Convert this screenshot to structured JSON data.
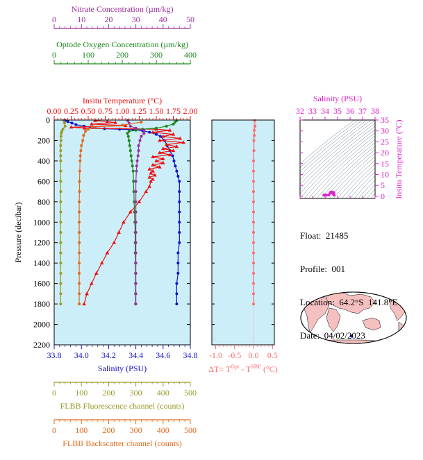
{
  "chart_data": [
    {
      "type": "line",
      "panel": "profile",
      "colors": {
        "nitrate": "#9b2d9b",
        "oxygen": "#1a8a1a",
        "temperature": "#ee1111",
        "salinity": "#1111cc",
        "fluorescence": "#9a9a2a",
        "backscatter": "#e06a1a",
        "background": "#cceef8"
      },
      "axes": {
        "nitrate": {
          "label": "Nitrate Concentration (µm/kg)",
          "range": [
            0,
            50
          ],
          "ticks": [
            "0",
            "10",
            "20",
            "30",
            "40",
            "50"
          ]
        },
        "oxygen": {
          "label": "Optode Oxygen Concentration (µm/kg)",
          "range": [
            0,
            400
          ],
          "ticks": [
            "0",
            "100",
            "200",
            "300",
            "400"
          ]
        },
        "temperature": {
          "label": "Insitu Temperature (°C)",
          "range": [
            0,
            2
          ],
          "ticks": [
            "0.00",
            "0.25",
            "0.50",
            "0.75",
            "1.00",
            "1.25",
            "1.50",
            "1.75",
            "2.00"
          ]
        },
        "salinity": {
          "label": "Salinity (PSU)",
          "range": [
            33.8,
            34.8
          ],
          "ticks": [
            "33.8",
            "34.0",
            "34.2",
            "34.4",
            "34.6",
            "34.8"
          ]
        },
        "pressure": {
          "label": "Pressure (decibar)",
          "range": [
            0,
            2200
          ],
          "ticks": [
            "0",
            "200",
            "400",
            "600",
            "800",
            "1000",
            "1200",
            "1400",
            "1600",
            "1800",
            "2000",
            "2200"
          ]
        },
        "fluorescence": {
          "label": "FLBB Fluorescence channel (counts)",
          "range": [
            0,
            500
          ],
          "ticks": [
            "0",
            "100",
            "200",
            "300",
            "400",
            "500"
          ]
        },
        "backscatter": {
          "label": "FLBB Backscatter channel (counts)",
          "range": [
            0,
            500
          ],
          "ticks": [
            "0",
            "100",
            "200",
            "300",
            "400",
            "500"
          ]
        }
      },
      "series": [
        {
          "name": "Salinity (PSU)",
          "var": "salinity",
          "marker": "circle",
          "points": [
            [
              33.88,
              5
            ],
            [
              33.9,
              15
            ],
            [
              33.93,
              30
            ],
            [
              33.96,
              45
            ],
            [
              34.02,
              60
            ],
            [
              34.08,
              75
            ],
            [
              34.17,
              85
            ],
            [
              34.28,
              90
            ],
            [
              34.38,
              95
            ],
            [
              34.45,
              105
            ],
            [
              34.5,
              120
            ],
            [
              34.55,
              140
            ],
            [
              34.58,
              160
            ],
            [
              34.61,
              200
            ],
            [
              34.63,
              250
            ],
            [
              34.65,
              300
            ],
            [
              34.67,
              350
            ],
            [
              34.68,
              400
            ],
            [
              34.69,
              450
            ],
            [
              34.7,
              500
            ],
            [
              34.71,
              550
            ],
            [
              34.72,
              600
            ],
            [
              34.72,
              700
            ],
            [
              34.72,
              800
            ],
            [
              34.72,
              900
            ],
            [
              34.72,
              1000
            ],
            [
              34.72,
              1100
            ],
            [
              34.72,
              1200
            ],
            [
              34.71,
              1300
            ],
            [
              34.71,
              1400
            ],
            [
              34.71,
              1500
            ],
            [
              34.7,
              1600
            ],
            [
              34.7,
              1700
            ],
            [
              34.7,
              1800
            ]
          ]
        },
        {
          "name": "Insitu Temperature (°C)",
          "var": "temperature",
          "marker": "triangle",
          "points": [
            [
              0.6,
              5
            ],
            [
              0.78,
              15
            ],
            [
              0.9,
              25
            ],
            [
              0.55,
              40
            ],
            [
              1.05,
              55
            ],
            [
              0.25,
              70
            ],
            [
              0.45,
              80
            ],
            [
              1.5,
              90
            ],
            [
              1.7,
              100
            ],
            [
              1.45,
              120
            ],
            [
              1.75,
              140
            ],
            [
              1.6,
              160
            ],
            [
              1.85,
              180
            ],
            [
              1.55,
              200
            ],
            [
              1.9,
              220
            ],
            [
              1.65,
              240
            ],
            [
              1.8,
              260
            ],
            [
              1.6,
              280
            ],
            [
              1.75,
              300
            ],
            [
              1.55,
              320
            ],
            [
              1.7,
              340
            ],
            [
              1.45,
              360
            ],
            [
              1.6,
              380
            ],
            [
              1.5,
              400
            ],
            [
              1.6,
              420
            ],
            [
              1.45,
              440
            ],
            [
              1.55,
              460
            ],
            [
              1.4,
              480
            ],
            [
              1.45,
              500
            ],
            [
              1.42,
              520
            ],
            [
              1.48,
              540
            ],
            [
              1.4,
              560
            ],
            [
              1.45,
              580
            ],
            [
              1.42,
              600
            ],
            [
              1.4,
              650
            ],
            [
              1.35,
              700
            ],
            [
              1.25,
              800
            ],
            [
              1.12,
              900
            ],
            [
              1.02,
              1000
            ],
            [
              0.95,
              1100
            ],
            [
              0.88,
              1200
            ],
            [
              0.78,
              1300
            ],
            [
              0.7,
              1400
            ],
            [
              0.62,
              1500
            ],
            [
              0.55,
              1600
            ],
            [
              0.48,
              1700
            ],
            [
              0.44,
              1800
            ]
          ]
        },
        {
          "name": "Optode Oxygen Concentration (µm/kg)",
          "var": "oxygen",
          "marker": "circle",
          "points": [
            [
              360,
              5
            ],
            [
              355,
              20
            ],
            [
              350,
              40
            ],
            [
              330,
              60
            ],
            [
              300,
              80
            ],
            [
              260,
              90
            ],
            [
              240,
              100
            ],
            [
              220,
              110
            ],
            [
              215,
              130
            ],
            [
              218,
              160
            ],
            [
              220,
              200
            ],
            [
              222,
              250
            ],
            [
              224,
              300
            ],
            [
              226,
              350
            ],
            [
              228,
              400
            ],
            [
              230,
              450
            ],
            [
              232,
              500
            ],
            [
              233,
              600
            ],
            [
              234,
              700
            ],
            [
              235,
              800
            ],
            [
              236,
              900
            ],
            [
              237,
              1000
            ],
            [
              238,
              1100
            ],
            [
              238,
              1200
            ],
            [
              238,
              1300
            ],
            [
              239,
              1400
            ],
            [
              239,
              1500
            ],
            [
              239,
              1600
            ],
            [
              239,
              1700
            ],
            [
              239,
              1800
            ]
          ]
        },
        {
          "name": "Nitrate Concentration (µm/kg)",
          "var": "nitrate",
          "marker": "circle",
          "points": [
            [
              27,
              5
            ],
            [
              27.5,
              30
            ],
            [
              28,
              60
            ],
            [
              30,
              80
            ],
            [
              33,
              100
            ],
            [
              33,
              130
            ],
            [
              32,
              160
            ],
            [
              31.5,
              200
            ],
            [
              31,
              250
            ],
            [
              31,
              300
            ],
            [
              30.8,
              350
            ],
            [
              30.5,
              400
            ],
            [
              30.3,
              450
            ],
            [
              30.2,
              500
            ],
            [
              30,
              600
            ],
            [
              30,
              700
            ],
            [
              30,
              800
            ],
            [
              30,
              900
            ],
            [
              30,
              1000
            ],
            [
              30,
              1100
            ],
            [
              30,
              1200
            ],
            [
              30,
              1300
            ],
            [
              30,
              1400
            ],
            [
              30,
              1500
            ],
            [
              30,
              1600
            ],
            [
              30,
              1700
            ],
            [
              30,
              1800
            ]
          ]
        },
        {
          "name": "FLBB Fluorescence channel (counts)",
          "var": "fluorescence",
          "marker": "circle",
          "points": [
            [
              35,
              5
            ],
            [
              38,
              30
            ],
            [
              40,
              60
            ],
            [
              32,
              90
            ],
            [
              28,
              110
            ],
            [
              26,
              130
            ],
            [
              25,
              160
            ],
            [
              25,
              200
            ],
            [
              24,
              250
            ],
            [
              24,
              300
            ],
            [
              24,
              350
            ],
            [
              24,
              400
            ],
            [
              24,
              500
            ],
            [
              24,
              600
            ],
            [
              24,
              700
            ],
            [
              24,
              800
            ],
            [
              24,
              900
            ],
            [
              24,
              1000
            ],
            [
              24,
              1100
            ],
            [
              24,
              1200
            ],
            [
              24,
              1300
            ],
            [
              24,
              1400
            ],
            [
              24,
              1500
            ],
            [
              24,
              1600
            ],
            [
              24,
              1700
            ],
            [
              24,
              1800
            ]
          ]
        },
        {
          "name": "FLBB Backscatter channel (counts)",
          "var": "backscatter",
          "marker": "circle",
          "points": [
            [
              320,
              20
            ],
            [
              250,
              50
            ],
            [
              140,
              70
            ],
            [
              125,
              90
            ],
            [
              115,
              110
            ],
            [
              108,
              150
            ],
            [
              105,
              200
            ],
            [
              100,
              250
            ],
            [
              98,
              300
            ],
            [
              96,
              350
            ],
            [
              95,
              400
            ],
            [
              94,
              500
            ],
            [
              93,
              600
            ],
            [
              93,
              700
            ],
            [
              92,
              800
            ],
            [
              92,
              900
            ],
            [
              92,
              1000
            ],
            [
              92,
              1100
            ],
            [
              92,
              1200
            ],
            [
              92,
              1300
            ],
            [
              92,
              1400
            ],
            [
              92,
              1500
            ],
            [
              92,
              1600
            ],
            [
              92,
              1700
            ],
            [
              92,
              1800
            ]
          ]
        }
      ]
    },
    {
      "type": "scatter",
      "panel": "delta-t",
      "xlabel": "ΔT= T",
      "xlabel_sup1": "Opt",
      "xlabel_mid": " - T",
      "xlabel_sup2": "SBE",
      "xlabel_unit": " (°C)",
      "xrange": [
        -1.1,
        0.55
      ],
      "ticks": [
        "-1.0",
        "-0.5",
        "0.0",
        "0.5"
      ],
      "tick_values": [
        -1.0,
        -0.5,
        0.0,
        0.5
      ],
      "color": "#ff6b6b",
      "points": [
        [
          0.03,
          5
        ],
        [
          0.04,
          60
        ],
        [
          0.02,
          100
        ],
        [
          0.02,
          150
        ],
        [
          0.01,
          200
        ],
        [
          0.01,
          300
        ],
        [
          0.0,
          400
        ],
        [
          0.0,
          500
        ],
        [
          0.0,
          600
        ],
        [
          0.0,
          700
        ],
        [
          0.0,
          800
        ],
        [
          0.0,
          900
        ],
        [
          0.0,
          1000
        ],
        [
          0.0,
          1100
        ],
        [
          0.0,
          1200
        ],
        [
          0.0,
          1300
        ],
        [
          0.0,
          1400
        ],
        [
          0.0,
          1500
        ],
        [
          0.0,
          1600
        ],
        [
          0.0,
          1700
        ],
        [
          0.0,
          1800
        ]
      ]
    },
    {
      "type": "scatter",
      "panel": "ts-diagram",
      "xlabel": "Salinity (PSU)",
      "ylabel": "Insitu Temperature (°C)",
      "xrange": [
        32,
        38
      ],
      "yrange": [
        -1,
        35
      ],
      "xticks": [
        "32",
        "33",
        "34",
        "35",
        "36",
        "37",
        "38"
      ],
      "yticks": [
        "0",
        "5",
        "10",
        "15",
        "20",
        "25",
        "30",
        "35"
      ],
      "color": "#dd22cc",
      "points": [
        [
          34.4,
          1.4
        ],
        [
          34.5,
          1.6
        ],
        [
          34.6,
          1.8
        ],
        [
          34.7,
          1.7
        ],
        [
          34.65,
          1.2
        ],
        [
          34.7,
          0.8
        ],
        [
          34.72,
          0.5
        ],
        [
          34.3,
          0.6
        ],
        [
          34.1,
          0.5
        ],
        [
          34.0,
          0.6
        ],
        [
          33.9,
          0.5
        ],
        [
          34.45,
          1.9
        ],
        [
          34.55,
          2.0
        ],
        [
          34.62,
          1.5
        ]
      ]
    }
  ],
  "info": {
    "float": "Float:  21485",
    "profile": "Profile:  001",
    "location": "Location:  64.2°S  141.8°E",
    "date": "Date:  04/02/2023"
  },
  "map": {
    "float_position": {
      "lat": -64.2,
      "lon": 141.8
    },
    "colors": {
      "ocean": "#ffffff",
      "land": "#f5c0c0",
      "marker": "#1111cc"
    }
  }
}
